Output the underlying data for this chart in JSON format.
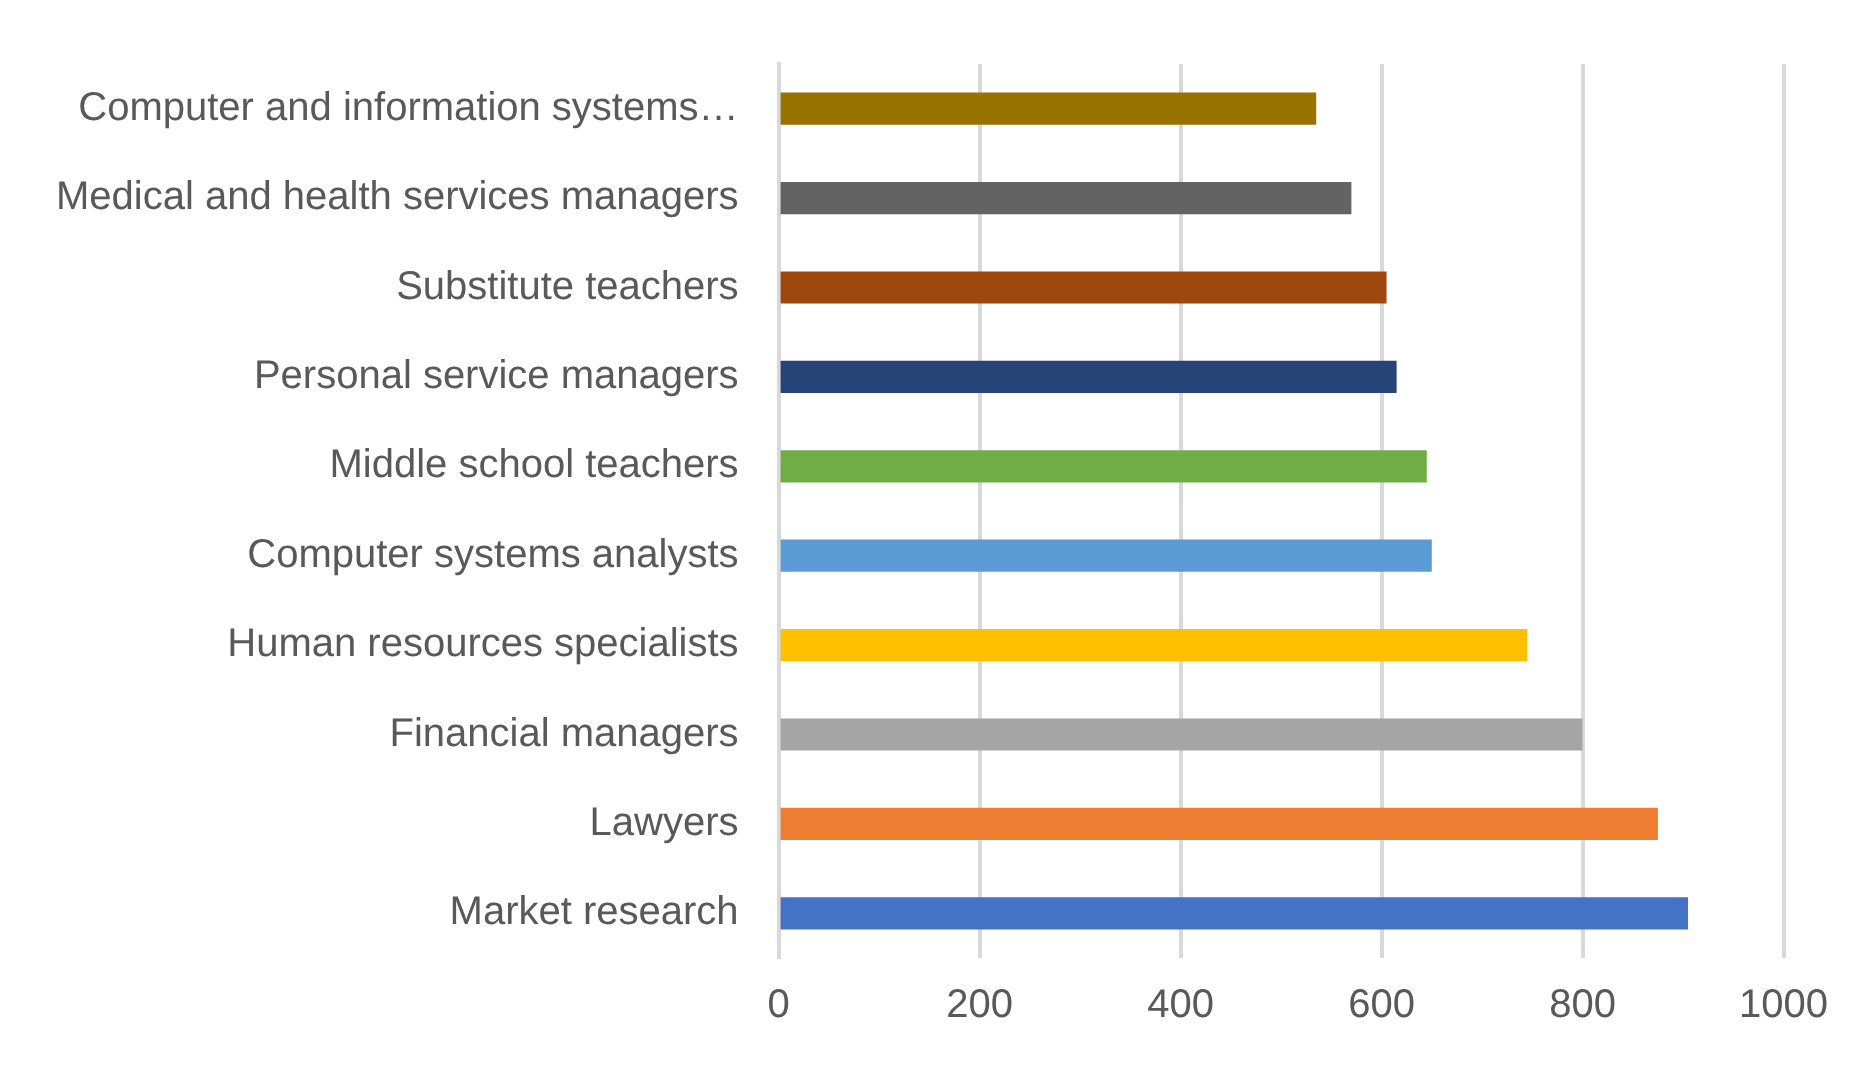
{
  "chart_data": {
    "type": "bar",
    "orientation": "horizontal",
    "categories": [
      "Computer and information systems…",
      "Medical and health services managers",
      "Substitute teachers",
      "Personal service managers",
      "Middle school teachers",
      "Computer systems analysts",
      "Human resources specialists",
      "Financial managers",
      "Lawyers",
      "Market research"
    ],
    "values": [
      535,
      570,
      605,
      615,
      645,
      650,
      745,
      800,
      875,
      905
    ],
    "colors": [
      "#997300",
      "#636363",
      "#9e480e",
      "#264478",
      "#70ad47",
      "#5b9bd5",
      "#ffc000",
      "#a5a5a5",
      "#ed7d31",
      "#4472c4"
    ],
    "xlim": [
      0,
      1000
    ],
    "xticks": [
      0,
      200,
      400,
      600,
      800,
      1000
    ],
    "grid": "x",
    "legend": false
  }
}
